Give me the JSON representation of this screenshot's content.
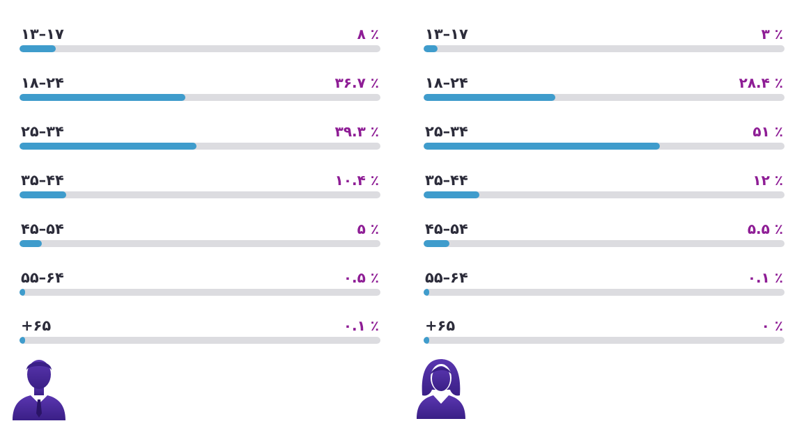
{
  "chart_data": [
    {
      "type": "bar",
      "orientation": "horizontal",
      "icon": "man-avatar-icon",
      "categories": [
        "۱۳–۱۷",
        "۱۸–۲۴",
        "۲۵–۳۴",
        "۳۵–۴۴",
        "۴۵–۵۴",
        "۵۵–۶۴",
        "+۶۵"
      ],
      "values": [
        8,
        36.7,
        39.3,
        10.4,
        5,
        0.5,
        0.1
      ],
      "value_labels": [
        "۸ ٪",
        "۳۶.۷ ٪",
        "۳۹.۳ ٪",
        "۱۰.۴ ٪",
        "۵ ٪",
        "۰.۵ ٪",
        "۰.۱ ٪"
      ],
      "xlim": [
        0,
        80
      ]
    },
    {
      "type": "bar",
      "orientation": "horizontal",
      "icon": "woman-avatar-icon",
      "categories": [
        "۱۳–۱۷",
        "۱۸–۲۴",
        "۲۵–۳۴",
        "۳۵–۴۴",
        "۴۵–۵۴",
        "۵۵–۶۴",
        "+۶۵"
      ],
      "values": [
        3,
        28.4,
        51,
        12,
        5.5,
        0.1,
        0
      ],
      "value_labels": [
        "۳ ٪",
        "۲۸.۴ ٪",
        "۵۱ ٪",
        "۱۲ ٪",
        "۵.۵ ٪",
        "۰.۱ ٪",
        "۰ ٪"
      ],
      "xlim": [
        0,
        78
      ]
    }
  ],
  "colors": {
    "bar_fill": "#3f9ccc",
    "track": "#dcdce0",
    "value_text": "#8e1d95",
    "label_text": "#2c2c3a",
    "avatar": "#4a2b9a"
  }
}
